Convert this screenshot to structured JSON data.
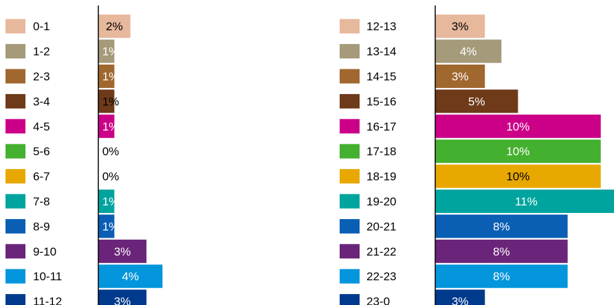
{
  "chart_data": [
    {
      "type": "bar",
      "orientation": "horizontal",
      "categories": [
        "0-1",
        "1-2",
        "2-3",
        "3-4",
        "4-5",
        "5-6",
        "6-7",
        "7-8",
        "8-9",
        "9-10",
        "10-11",
        "11-12"
      ],
      "values": [
        2,
        1,
        1,
        1,
        1,
        0,
        0,
        1,
        1,
        3,
        4,
        3
      ],
      "labels": [
        "2%",
        "1%",
        "1%",
        "1%",
        "1%",
        "0%",
        "0%",
        "1%",
        "1%",
        "3%",
        "4%",
        "3%"
      ],
      "colors": [
        "#e6b89c",
        "#a59a7a",
        "#a0672f",
        "#6e3a1a",
        "#cc0088",
        "#44b030",
        "#e8a800",
        "#00a49e",
        "#0a5fb4",
        "#6a2479",
        "#0496dc",
        "#003a8c"
      ],
      "label_colors": [
        "#000000",
        "#ffffff",
        "#ffffff",
        "#000000",
        "#ffffff",
        "#000000",
        "#000000",
        "#ffffff",
        "#ffffff",
        "#ffffff",
        "#ffffff",
        "#ffffff"
      ],
      "xlim": [
        0,
        10.8
      ],
      "legend": "left",
      "grid": false
    },
    {
      "type": "bar",
      "orientation": "horizontal",
      "categories": [
        "12-13",
        "13-14",
        "14-15",
        "15-16",
        "16-17",
        "17-18",
        "18-19",
        "19-20",
        "20-21",
        "21-22",
        "22-23",
        "23-0"
      ],
      "values": [
        3,
        4,
        3,
        5,
        10,
        10,
        10,
        11,
        8,
        8,
        8,
        3
      ],
      "labels": [
        "3%",
        "4%",
        "3%",
        "5%",
        "10%",
        "10%",
        "10%",
        "11%",
        "8%",
        "8%",
        "8%",
        "3%"
      ],
      "colors": [
        "#e6b89c",
        "#a59a7a",
        "#a0672f",
        "#6e3a1a",
        "#cc0088",
        "#44b030",
        "#e8a800",
        "#00a49e",
        "#0a5fb4",
        "#6a2479",
        "#0496dc",
        "#003a8c"
      ],
      "label_colors": [
        "#000000",
        "#ffffff",
        "#ffffff",
        "#ffffff",
        "#ffffff",
        "#ffffff",
        "#000000",
        "#ffffff",
        "#ffffff",
        "#ffffff",
        "#ffffff",
        "#ffffff"
      ],
      "xlim": [
        0,
        10.8
      ],
      "legend": "left",
      "grid": false
    }
  ]
}
